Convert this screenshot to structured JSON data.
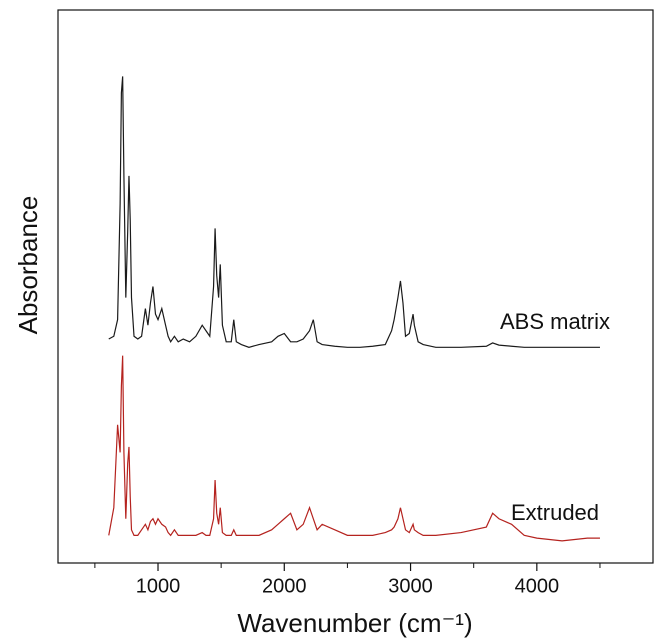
{
  "chart_data": {
    "type": "line",
    "xlabel": "Wavenumber (cm⁻¹)",
    "ylabel": "Absorbance",
    "xlim": [
      208,
      4920
    ],
    "ylim": [
      0,
      100
    ],
    "xticks": [
      1000,
      2000,
      3000,
      4000
    ],
    "xminorticks": [
      500,
      1500,
      2500,
      3500,
      4500
    ],
    "x": [
      610,
      650,
      680,
      700,
      710,
      720,
      730,
      745,
      760,
      770,
      780,
      790,
      810,
      840,
      870,
      900,
      920,
      940,
      960,
      980,
      1000,
      1030,
      1060,
      1080,
      1100,
      1130,
      1160,
      1200,
      1250,
      1300,
      1350,
      1380,
      1410,
      1440,
      1452,
      1465,
      1480,
      1493,
      1510,
      1540,
      1580,
      1600,
      1620,
      1660,
      1720,
      1800,
      1900,
      1950,
      2000,
      2050,
      2100,
      2150,
      2200,
      2230,
      2260,
      2300,
      2400,
      2500,
      2600,
      2700,
      2800,
      2850,
      2870,
      2900,
      2920,
      2940,
      2960,
      2990,
      3020,
      3030,
      3060,
      3100,
      3200,
      3400,
      3600,
      3650,
      3700,
      3800,
      3900,
      4000,
      4200,
      4400,
      4500
    ],
    "series": [
      {
        "name": "ABS matrix",
        "color": "#1a1a1a",
        "values": [
          40.5,
          41,
          44,
          65,
          85,
          88,
          70,
          48,
          60,
          70,
          62,
          48,
          41,
          40.5,
          41,
          46,
          43,
          47,
          50,
          45,
          44,
          46,
          43,
          41,
          40,
          41,
          40,
          40.5,
          40,
          41,
          43,
          42,
          41,
          50,
          60.5,
          52,
          48,
          54,
          43,
          40,
          40,
          44,
          40,
          39.5,
          39,
          39.5,
          40,
          41,
          41.5,
          40,
          40,
          40.5,
          42,
          44,
          40,
          39.5,
          39.2,
          39,
          39,
          39.2,
          39.5,
          42,
          44,
          48,
          51,
          47,
          41,
          41.5,
          45,
          43,
          40,
          39.5,
          39,
          39,
          39.2,
          39.8,
          39.4,
          39.2,
          39,
          39,
          39,
          39,
          39
        ]
      },
      {
        "name": "Extruded",
        "color": "#b5231f",
        "values": [
          5,
          10,
          25,
          20,
          32,
          37.5,
          20,
          8,
          18,
          21,
          12,
          6,
          5,
          5,
          6,
          7,
          6,
          7.5,
          8,
          7,
          8,
          7,
          6.5,
          5.5,
          5,
          6,
          5,
          5,
          5,
          5,
          5.5,
          5,
          5,
          8,
          15,
          9,
          7,
          10,
          5.5,
          5,
          5,
          6,
          5,
          5,
          5,
          5,
          6,
          7,
          8,
          9,
          6,
          7,
          10,
          8,
          6,
          7,
          6,
          5,
          5,
          5,
          5.5,
          6,
          6.5,
          8,
          10,
          8,
          6,
          5.5,
          7,
          6,
          5.5,
          5,
          5,
          5.5,
          6.5,
          9,
          8,
          7,
          5,
          4.5,
          4,
          4.5,
          4.5
        ]
      }
    ]
  }
}
